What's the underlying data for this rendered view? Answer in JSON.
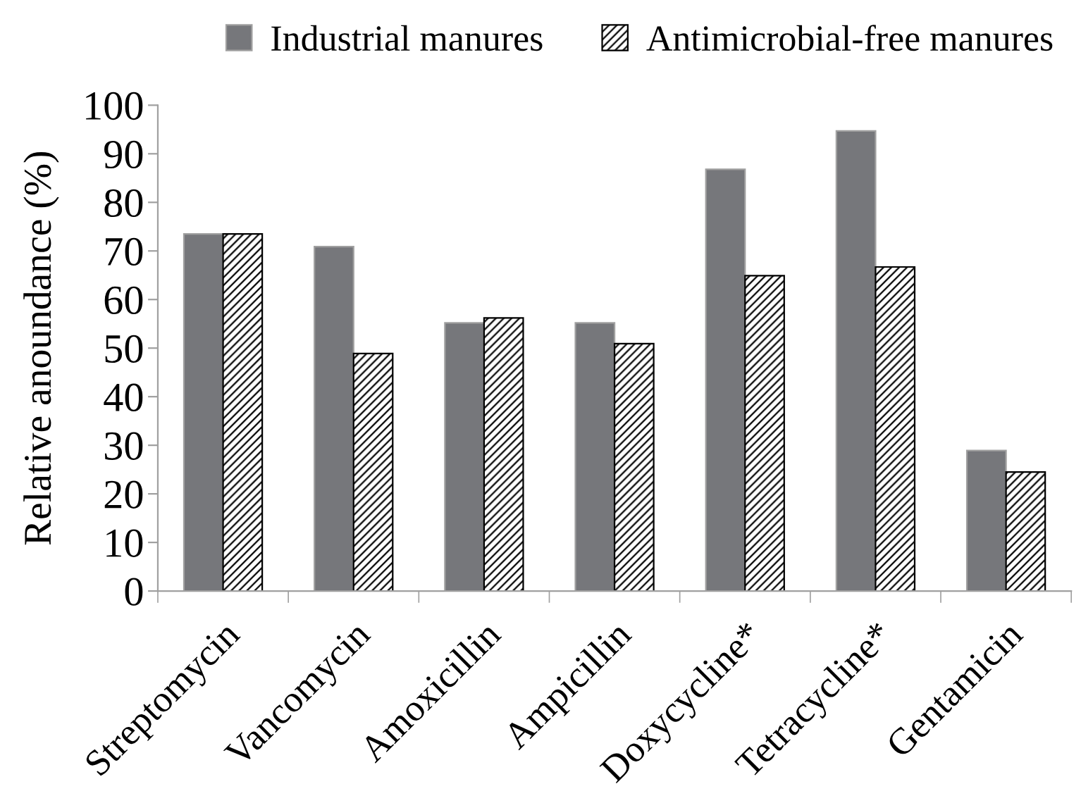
{
  "chart_data": {
    "type": "bar",
    "ylabel": "Relative anoundance (%)",
    "categories": [
      "Streptomycin",
      "Vancomycin",
      "Amoxicillin",
      "Ampicillin",
      "Doxycycline*",
      "Tetracycline*",
      "Gentamicin"
    ],
    "series": [
      {
        "name": "Industrial manures",
        "color": "#76777b",
        "values": [
          73.5,
          70.9,
          55.2,
          55.2,
          86.8,
          94.7,
          28.9
        ]
      },
      {
        "name": "Antimicrobial-free manures",
        "color": "#000000",
        "values": [
          73.5,
          48.9,
          56.2,
          50.9,
          64.9,
          66.7,
          24.5
        ]
      }
    ],
    "ylim": [
      0,
      100
    ],
    "yticks": [
      0,
      10,
      20,
      30,
      40,
      50,
      60,
      70,
      80,
      90,
      100
    ],
    "grid": false,
    "legend": "top"
  }
}
